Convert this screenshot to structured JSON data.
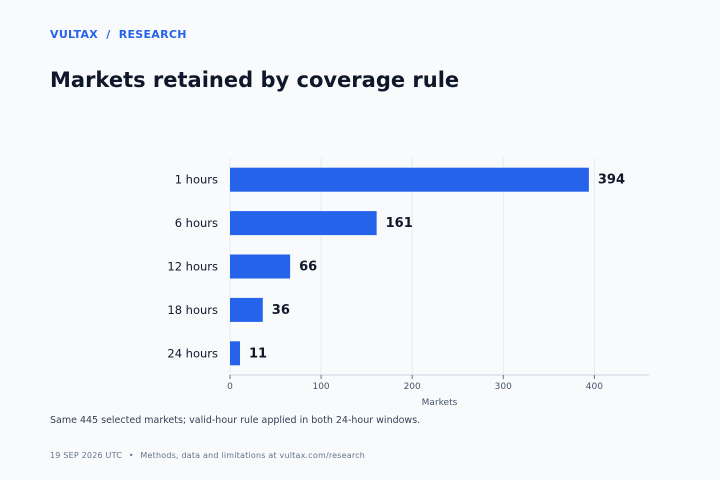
{
  "header": {
    "brand": "VULTAX",
    "separator": "/",
    "section": "RESEARCH",
    "title": "Markets retained by coverage rule"
  },
  "note": "Same 445 selected markets; valid-hour rule applied in both 24-hour windows.",
  "footer": {
    "date": "19 SEP 2026 UTC",
    "bullet": "•",
    "text": "Methods, data and limitations at vultax.com/research"
  },
  "colors": {
    "accent": "#2563eb",
    "bar": "#2563eb",
    "text": "#0f172a",
    "grid": "#e2e8f0"
  },
  "chart_data": {
    "type": "bar",
    "orientation": "horizontal",
    "categories": [
      "1 hours",
      "6 hours",
      "12 hours",
      "18 hours",
      "24 hours"
    ],
    "values": [
      394,
      161,
      66,
      36,
      11
    ],
    "title": "",
    "xlabel": "Markets",
    "ylabel": "",
    "xlim": [
      0,
      460
    ],
    "xticks": [
      0,
      100,
      200,
      300,
      400
    ],
    "grid": true,
    "data_labels": true
  }
}
